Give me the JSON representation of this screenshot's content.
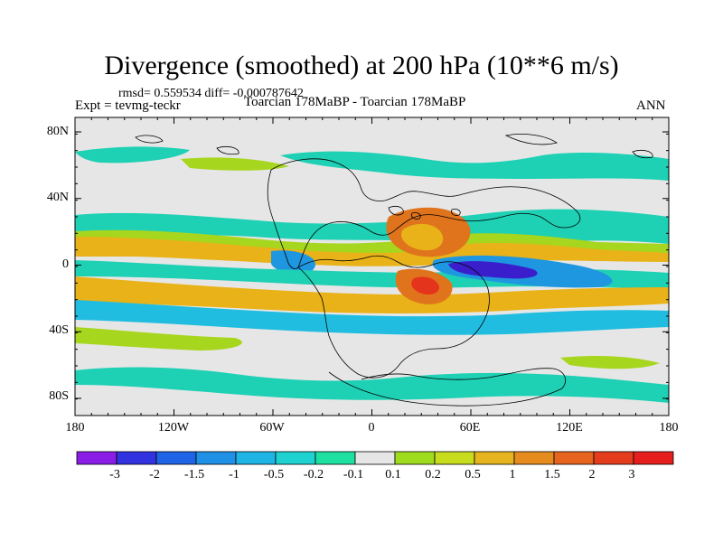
{
  "title": "Divergence (smoothed) at 200 hPa (10**6 m/s)",
  "stats": "rmsd= 0.559534 diff= -0.000787642",
  "left_label": "Expt = tevmg-teckr",
  "center_label": "Toarcian 178MaBP - Toarcian 178MaBP",
  "right_label": "ANN",
  "map": {
    "lat_ticks": [
      "80N",
      "40N",
      "0",
      "40S",
      "80S"
    ],
    "lon_ticks": [
      "180",
      "120W",
      "60W",
      "0",
      "60E",
      "120E",
      "180"
    ],
    "field_colors": {
      "neutral": "#e6e6e6",
      "pos_weak": "#a7d61e",
      "pos_mid": "#e8b218",
      "pos_strong": "#e0741c",
      "pos_max": "#e5341c",
      "neg_weak": "#1ed0b4",
      "neg_mid": "#21bde0",
      "neg_strong": "#1f96e0",
      "neg_max": "#3a1ecc"
    }
  },
  "colorbar": {
    "labels": [
      "-3",
      "-2",
      "-1.5",
      "-1",
      "-0.5",
      "-0.2",
      "-0.1",
      "0.1",
      "0.2",
      "0.5",
      "1",
      "1.5",
      "2",
      "3"
    ],
    "colors": [
      "#8a1ee6",
      "#3232e0",
      "#1f64e6",
      "#1e90e6",
      "#1eb4e6",
      "#1ed2d2",
      "#1ee0a0",
      "#e6e6e6",
      "#a0dc1e",
      "#c8dc1e",
      "#e6b41e",
      "#e68c1e",
      "#e6641e",
      "#e63c1e",
      "#e61e1e"
    ]
  }
}
